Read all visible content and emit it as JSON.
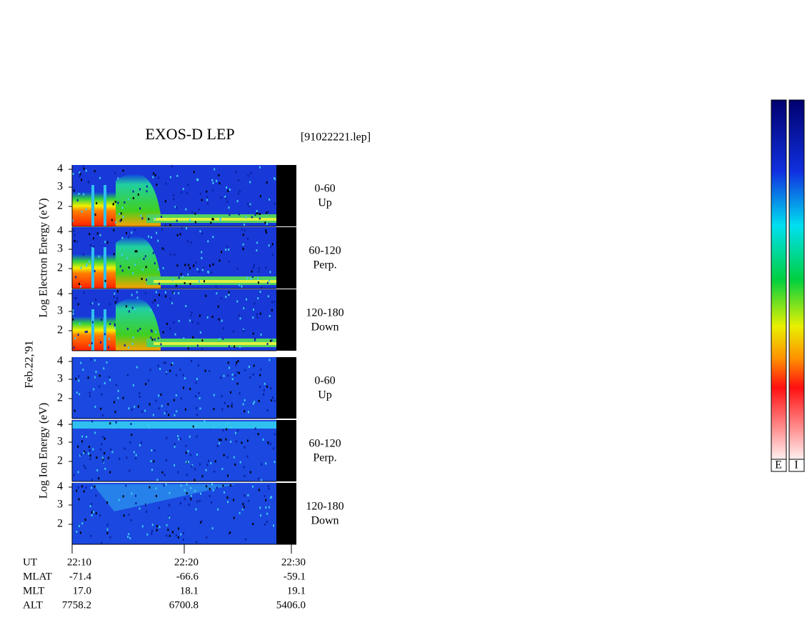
{
  "header": {
    "title": "EXOS-D LEP",
    "file": "[91022221.lep]"
  },
  "date": "Feb.22,'91",
  "electron": {
    "axis_label": "Log  Electron  Energy (eV)",
    "yticks": [
      "4",
      "3",
      "2"
    ],
    "panels": [
      {
        "angle": "0-60",
        "dir": "Up"
      },
      {
        "angle": "60-120",
        "dir": "Perp."
      },
      {
        "angle": "120-180",
        "dir": "Down"
      }
    ]
  },
  "ion": {
    "axis_label": "Log  Ion  Energy (eV)",
    "yticks": [
      "4",
      "3",
      "2"
    ],
    "panels": [
      {
        "angle": "0-60",
        "dir": "Up"
      },
      {
        "angle": "60-120",
        "dir": "Perp."
      },
      {
        "angle": "120-180",
        "dir": "Down"
      }
    ]
  },
  "time_axis": {
    "rows": [
      {
        "label": "UT",
        "values": [
          "22:10",
          "22:20",
          "22:30"
        ]
      },
      {
        "label": "MLAT",
        "values": [
          "-71.4",
          "-66.6",
          "-59.1"
        ]
      },
      {
        "label": "MLT",
        "values": [
          "17.0",
          "18.1",
          "19.1"
        ]
      },
      {
        "label": "ALT",
        "values": [
          "7758.2",
          "6700.8",
          "5406.0"
        ]
      }
    ]
  },
  "colorbars": [
    "E",
    "I"
  ]
}
